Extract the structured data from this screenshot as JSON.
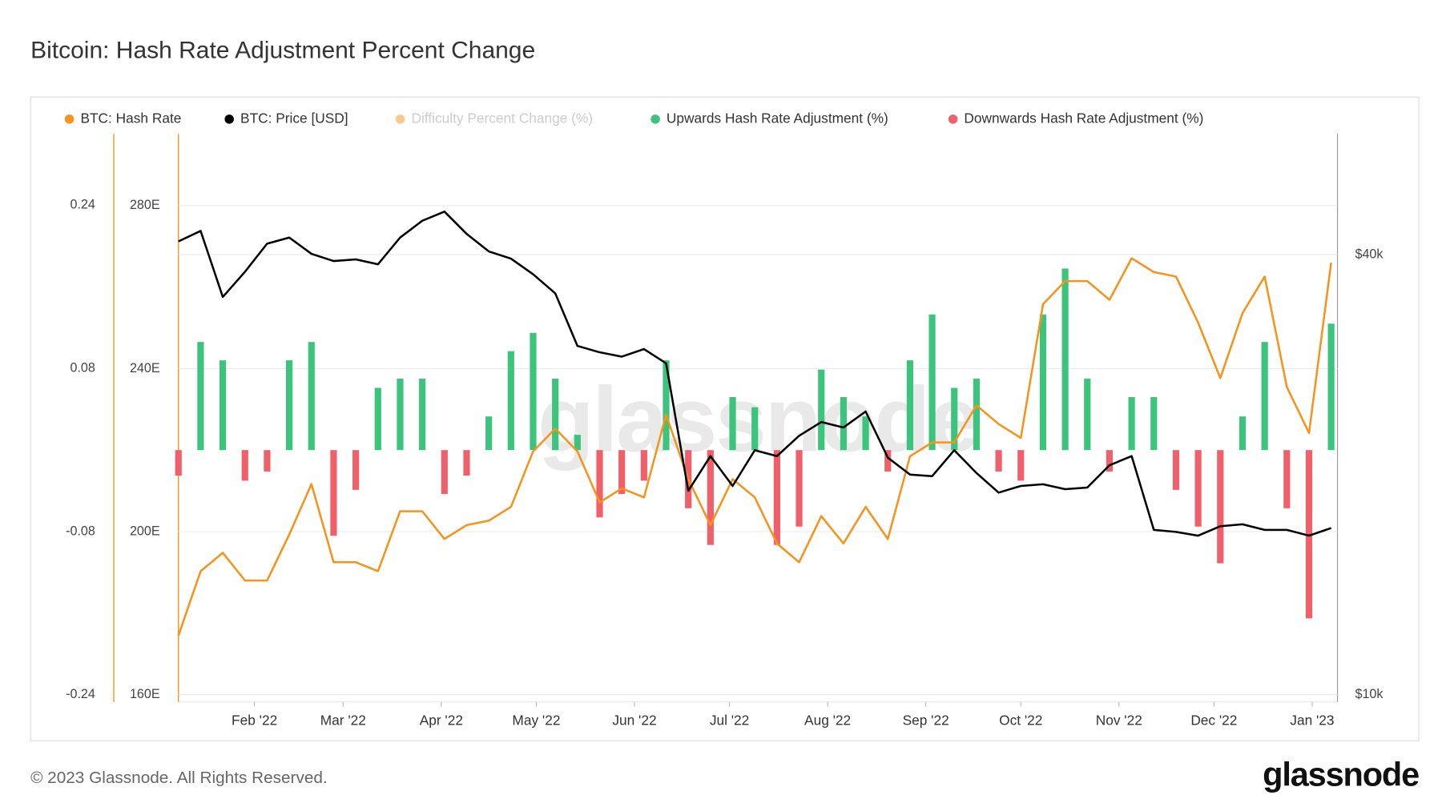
{
  "title": "Bitcoin: Hash Rate Adjustment Percent Change",
  "footer": "© 2023 Glassnode. All Rights Reserved.",
  "logo": "glassnode",
  "chart_data": {
    "type": "combo",
    "watermark": "glassnode",
    "x": [
      "2022-01-08",
      "2022-01-15",
      "2022-01-22",
      "2022-01-29",
      "2022-02-05",
      "2022-02-12",
      "2022-02-19",
      "2022-02-26",
      "2022-03-05",
      "2022-03-12",
      "2022-03-19",
      "2022-03-26",
      "2022-04-02",
      "2022-04-09",
      "2022-04-16",
      "2022-04-23",
      "2022-04-30",
      "2022-05-07",
      "2022-05-14",
      "2022-05-21",
      "2022-05-28",
      "2022-06-04",
      "2022-06-11",
      "2022-06-18",
      "2022-06-25",
      "2022-07-02",
      "2022-07-09",
      "2022-07-16",
      "2022-07-23",
      "2022-07-30",
      "2022-08-06",
      "2022-08-13",
      "2022-08-20",
      "2022-08-27",
      "2022-09-03",
      "2022-09-10",
      "2022-09-17",
      "2022-09-24",
      "2022-10-01",
      "2022-10-08",
      "2022-10-15",
      "2022-10-22",
      "2022-10-29",
      "2022-11-05",
      "2022-11-12",
      "2022-11-19",
      "2022-11-26",
      "2022-12-03",
      "2022-12-10",
      "2022-12-17",
      "2022-12-24",
      "2022-12-31",
      "2023-01-07"
    ],
    "xlim": [
      "2022-01-08",
      "2023-01-09"
    ],
    "xticks": [
      {
        "value": "2022-02-01",
        "label": "Feb '22"
      },
      {
        "value": "2022-03-01",
        "label": "Mar '22"
      },
      {
        "value": "2022-04-01",
        "label": "Apr '22"
      },
      {
        "value": "2022-05-01",
        "label": "May '22"
      },
      {
        "value": "2022-06-01",
        "label": "Jun '22"
      },
      {
        "value": "2022-07-01",
        "label": "Jul '22"
      },
      {
        "value": "2022-08-01",
        "label": "Aug '22"
      },
      {
        "value": "2022-09-01",
        "label": "Sep '22"
      },
      {
        "value": "2022-10-01",
        "label": "Oct '22"
      },
      {
        "value": "2022-11-01",
        "label": "Nov '22"
      },
      {
        "value": "2022-12-01",
        "label": "Dec '22"
      },
      {
        "value": "2023-01-01",
        "label": "Jan '23"
      }
    ],
    "ylim": [
      -0.247,
      0.31
    ],
    "yticks": [
      0.24,
      0.08,
      -0.08,
      -0.24
    ],
    "y2lim": [
      158.2,
      297.6
    ],
    "y2ticks": [
      {
        "value": 280,
        "label": "280E"
      },
      {
        "value": 240,
        "label": "240E"
      },
      {
        "value": 200,
        "label": "200E"
      },
      {
        "value": 160,
        "label": "160E"
      }
    ],
    "y3lim": [
      9770,
      58500
    ],
    "y3scale": "log",
    "y3ticks": [
      {
        "value": 40000,
        "label": "$40k"
      },
      {
        "value": 10000,
        "label": "$10k"
      }
    ],
    "grid": true,
    "series": [
      {
        "name": "BTC: Hash Rate",
        "color": "#f7931a",
        "kind": "line",
        "axis": "y2",
        "values": [
          174.5,
          190.3,
          194.8,
          188,
          188,
          199.3,
          211.7,
          192.5,
          192.5,
          190.3,
          205,
          205,
          198.2,
          201.6,
          202.7,
          206.1,
          219.7,
          225.3,
          219.7,
          207.2,
          210.6,
          208.4,
          228.7,
          212.9,
          201.6,
          212.9,
          208.4,
          197.1,
          192.5,
          203.8,
          197.1,
          206.1,
          198.2,
          218.5,
          221.9,
          221.9,
          231,
          226.4,
          223,
          255.8,
          261.5,
          261.5,
          256.9,
          267.1,
          263.7,
          262.6,
          251.3,
          237.7,
          253.6,
          262.6,
          235.5,
          224.2,
          266
        ]
      },
      {
        "name": "BTC: Price [USD]",
        "color": "#000000",
        "kind": "line",
        "axis": "y3",
        "values": [
          41700,
          43100,
          35000,
          37900,
          41400,
          42200,
          40100,
          39200,
          39400,
          38800,
          42200,
          44500,
          45800,
          42700,
          40400,
          39500,
          37600,
          35400,
          30000,
          29400,
          29000,
          29700,
          28400,
          19000,
          21200,
          19300,
          21600,
          21200,
          22600,
          23600,
          23200,
          24400,
          21100,
          20000,
          19900,
          21600,
          20100,
          18900,
          19300,
          19400,
          19100,
          19200,
          20600,
          21200,
          16800,
          16700,
          16500,
          17000,
          17100,
          16800,
          16800,
          16500,
          16900
        ]
      },
      {
        "name": "Difficulty Percent Change (%)",
        "color": "#f7931a",
        "hidden": true
      },
      {
        "name": "Upwards Hash Rate Adjustment (%)",
        "color": "#3cc47c",
        "kind": "bar",
        "axis": "y",
        "values": [
          null,
          0.106,
          0.088,
          null,
          null,
          0.088,
          0.106,
          null,
          null,
          0.061,
          0.07,
          0.07,
          null,
          null,
          0.033,
          0.097,
          0.115,
          0.07,
          0.015,
          null,
          null,
          null,
          0.088,
          null,
          null,
          0.052,
          0.042,
          null,
          null,
          0.079,
          0.052,
          0.033,
          null,
          0.088,
          0.133,
          0.061,
          0.07,
          null,
          null,
          0.133,
          0.178,
          0.07,
          null,
          0.052,
          0.052,
          null,
          null,
          null,
          0.033,
          0.106,
          null,
          null,
          0.124
        ]
      },
      {
        "name": "Downwards Hash Rate Adjustment (%)",
        "color": "#f0606a",
        "kind": "bar",
        "axis": "y",
        "values": [
          -0.025,
          null,
          null,
          -0.03,
          -0.021,
          null,
          null,
          -0.084,
          -0.039,
          null,
          null,
          null,
          -0.043,
          -0.025,
          null,
          null,
          null,
          null,
          null,
          -0.066,
          -0.043,
          -0.03,
          null,
          -0.057,
          -0.093,
          null,
          null,
          -0.093,
          -0.075,
          null,
          null,
          null,
          -0.021,
          null,
          null,
          null,
          null,
          -0.021,
          -0.03,
          null,
          null,
          null,
          -0.021,
          null,
          null,
          -0.039,
          -0.075,
          -0.111,
          null,
          null,
          -0.057,
          -0.165,
          null
        ]
      }
    ]
  }
}
